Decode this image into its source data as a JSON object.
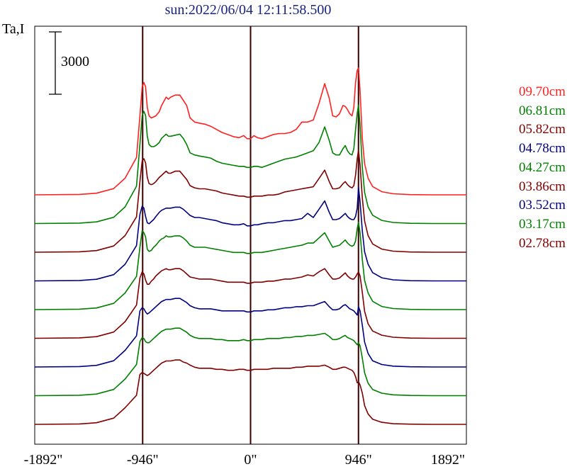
{
  "chart_data": {
    "type": "line",
    "title": "sun:2022/06/04 12:11:58.500",
    "ylabel": "Ta,I",
    "scale_bar": {
      "label": "3000",
      "value": 3000
    },
    "xlim": [
      -1892,
      1892
    ],
    "x_ticks": [
      {
        "value": -1892,
        "label": "-1892\""
      },
      {
        "value": -946,
        "label": "-946\""
      },
      {
        "value": 0,
        "label": "0\""
      },
      {
        "value": 946,
        "label": "946\""
      },
      {
        "value": 1892,
        "label": "1892\""
      }
    ],
    "vlines": [
      -946,
      0,
      946
    ],
    "grid": false,
    "legend_position": "right",
    "x": [
      -1892,
      -1500,
      -1350,
      -1200,
      -1100,
      -1000,
      -970,
      -950,
      -935,
      -920,
      -905,
      -890,
      -870,
      -850,
      -830,
      -800,
      -780,
      -760,
      -740,
      -720,
      -700,
      -660,
      -620,
      -590,
      -560,
      -530,
      -490,
      -450,
      -400,
      -350,
      -300,
      -250,
      -200,
      -150,
      -100,
      -60,
      -30,
      0,
      30,
      60,
      100,
      150,
      200,
      250,
      300,
      350,
      400,
      450,
      500,
      550,
      600,
      650,
      690,
      720,
      750,
      780,
      810,
      830,
      850,
      870,
      890,
      905,
      920,
      935,
      946,
      960,
      980,
      1000,
      1030,
      1070,
      1150,
      1250,
      1400,
      1600,
      1892
    ],
    "series": [
      {
        "name": "09.70cm",
        "color": "#ff2020",
        "values": [
          0,
          20,
          80,
          300,
          800,
          1800,
          3800,
          5200,
          5400,
          5200,
          4200,
          3800,
          3700,
          3750,
          3800,
          4000,
          4300,
          4500,
          4700,
          4600,
          4700,
          4800,
          4800,
          4550,
          4300,
          3700,
          3500,
          3450,
          3400,
          3300,
          3150,
          3000,
          2900,
          2800,
          2750,
          2850,
          2700,
          2700,
          2850,
          2750,
          2700,
          2800,
          2900,
          2950,
          2950,
          3000,
          3150,
          3500,
          3500,
          3600,
          4400,
          5350,
          4650,
          3800,
          3750,
          3900,
          4300,
          4250,
          4100,
          3900,
          3800,
          4200,
          5400,
          6000,
          6100,
          5000,
          2700,
          1500,
          800,
          400,
          150,
          50,
          10,
          0,
          0
        ]
      },
      {
        "name": "06.81cm",
        "color": "#008000",
        "values": [
          0,
          20,
          80,
          300,
          800,
          1800,
          3800,
          5200,
          5400,
          5200,
          4200,
          3800,
          3700,
          3700,
          3750,
          3900,
          4100,
          4200,
          4300,
          4200,
          4200,
          4250,
          4300,
          4100,
          3800,
          3400,
          3300,
          3250,
          3200,
          3150,
          3000,
          2900,
          2850,
          2800,
          2750,
          2750,
          2700,
          2700,
          2750,
          2750,
          2700,
          2800,
          2900,
          3000,
          3100,
          3150,
          3200,
          3300,
          3400,
          3500,
          3900,
          4650,
          4000,
          3400,
          3300,
          3300,
          3600,
          3750,
          3500,
          3350,
          3300,
          3600,
          4500,
          5300,
          5700,
          4700,
          2700,
          1500,
          800,
          400,
          150,
          50,
          10,
          0,
          0
        ]
      },
      {
        "name": "05.82cm",
        "color": "#800000",
        "values": [
          0,
          20,
          80,
          300,
          800,
          1700,
          3400,
          4400,
          4500,
          4300,
          3600,
          3300,
          3250,
          3300,
          3400,
          3600,
          3700,
          3800,
          3900,
          3800,
          3800,
          3900,
          3900,
          3700,
          3500,
          3200,
          3100,
          3050,
          3050,
          3000,
          2950,
          2850,
          2800,
          2750,
          2700,
          2700,
          2650,
          2650,
          2700,
          2700,
          2700,
          2750,
          2750,
          2800,
          2900,
          2950,
          3000,
          3050,
          3100,
          3150,
          3550,
          3950,
          3400,
          3050,
          3050,
          3100,
          3300,
          3400,
          3250,
          3150,
          3100,
          3200,
          3700,
          4500,
          4900,
          4200,
          2600,
          1500,
          800,
          400,
          150,
          50,
          10,
          0,
          0
        ]
      },
      {
        "name": "04.78cm",
        "color": "#000080",
        "values": [
          0,
          20,
          80,
          300,
          800,
          1700,
          3200,
          3600,
          3500,
          3100,
          2800,
          2750,
          2850,
          2950,
          3100,
          3300,
          3400,
          3450,
          3500,
          3500,
          3500,
          3550,
          3550,
          3450,
          3300,
          3150,
          3050,
          3050,
          3000,
          2950,
          2900,
          2800,
          2750,
          2700,
          2700,
          2750,
          2650,
          2650,
          2700,
          2700,
          2750,
          2800,
          2800,
          2850,
          2900,
          2900,
          2950,
          3000,
          3250,
          3050,
          3450,
          3850,
          3300,
          2950,
          2950,
          3000,
          3150,
          3250,
          3100,
          3000,
          2950,
          2950,
          3100,
          3500,
          4500,
          3800,
          2400,
          1400,
          800,
          400,
          150,
          50,
          10,
          0,
          0
        ]
      },
      {
        "name": "04.27cm",
        "color": "#008000",
        "values": [
          0,
          20,
          80,
          300,
          800,
          1600,
          3000,
          3800,
          3700,
          3500,
          2900,
          2800,
          2850,
          3000,
          3100,
          3300,
          3400,
          3450,
          3550,
          3500,
          3500,
          3550,
          3550,
          3450,
          3300,
          3100,
          3000,
          3000,
          3000,
          2950,
          2900,
          2850,
          2800,
          2750,
          2750,
          2750,
          2700,
          2700,
          2750,
          2750,
          2750,
          2800,
          2850,
          2900,
          2950,
          3000,
          3050,
          3100,
          3200,
          3200,
          3450,
          3700,
          3300,
          3000,
          3050,
          3100,
          3250,
          3350,
          3200,
          3100,
          3050,
          3100,
          3300,
          3900,
          4200,
          3700,
          2400,
          1400,
          800,
          400,
          150,
          50,
          10,
          0,
          0
        ]
      },
      {
        "name": "03.86cm",
        "color": "#800000",
        "values": [
          0,
          20,
          80,
          300,
          800,
          1600,
          2900,
          3200,
          3100,
          2800,
          2600,
          2600,
          2750,
          2850,
          3000,
          3150,
          3250,
          3300,
          3350,
          3300,
          3300,
          3350,
          3350,
          3250,
          3100,
          2950,
          2900,
          2850,
          2850,
          2850,
          2800,
          2750,
          2700,
          2700,
          2700,
          2700,
          2650,
          2650,
          2700,
          2700,
          2700,
          2750,
          2750,
          2800,
          2850,
          2850,
          2900,
          2950,
          3050,
          3000,
          3200,
          3350,
          3050,
          2850,
          2850,
          2900,
          3050,
          3150,
          3000,
          2900,
          2850,
          2850,
          2950,
          3100,
          3200,
          3000,
          2200,
          1300,
          700,
          350,
          150,
          50,
          10,
          0,
          0
        ]
      },
      {
        "name": "03.52cm",
        "color": "#000080",
        "values": [
          0,
          20,
          80,
          300,
          800,
          1500,
          2700,
          2850,
          2800,
          2650,
          2550,
          2600,
          2700,
          2800,
          2900,
          3050,
          3150,
          3200,
          3250,
          3250,
          3250,
          3300,
          3300,
          3200,
          3100,
          2950,
          2850,
          2800,
          2800,
          2800,
          2750,
          2700,
          2700,
          2700,
          2700,
          2700,
          2650,
          2650,
          2700,
          2700,
          2700,
          2750,
          2750,
          2800,
          2850,
          2850,
          2900,
          2900,
          2950,
          2950,
          3050,
          3150,
          2900,
          2750,
          2750,
          2800,
          2950,
          3000,
          2900,
          2800,
          2750,
          2700,
          2600,
          2500,
          2900,
          2700,
          2000,
          1200,
          650,
          300,
          120,
          40,
          10,
          0,
          0
        ]
      },
      {
        "name": "03.17cm",
        "color": "#008000",
        "values": [
          0,
          20,
          80,
          300,
          800,
          1500,
          2600,
          2800,
          2750,
          2600,
          2550,
          2550,
          2650,
          2750,
          2850,
          3000,
          3100,
          3150,
          3200,
          3200,
          3200,
          3250,
          3250,
          3150,
          3050,
          2900,
          2800,
          2750,
          2750,
          2750,
          2700,
          2700,
          2650,
          2650,
          2650,
          2700,
          2650,
          2650,
          2700,
          2700,
          2700,
          2750,
          2750,
          2750,
          2800,
          2800,
          2850,
          2850,
          2900,
          2900,
          2950,
          3000,
          2850,
          2700,
          2700,
          2750,
          2850,
          2900,
          2800,
          2750,
          2700,
          2650,
          2550,
          2450,
          2550,
          2400,
          1800,
          1100,
          600,
          300,
          120,
          40,
          10,
          0,
          0
        ]
      },
      {
        "name": "02.78cm",
        "color": "#800000",
        "values": [
          0,
          20,
          80,
          300,
          800,
          1400,
          2400,
          2500,
          2450,
          2400,
          2350,
          2400,
          2500,
          2600,
          2700,
          2850,
          2950,
          3000,
          3050,
          3050,
          3050,
          3100,
          3100,
          3000,
          2950,
          2850,
          2750,
          2700,
          2700,
          2700,
          2650,
          2650,
          2600,
          2600,
          2650,
          2650,
          2600,
          2600,
          2650,
          2650,
          2650,
          2650,
          2700,
          2700,
          2700,
          2700,
          2750,
          2750,
          2800,
          2800,
          2800,
          2850,
          2750,
          2650,
          2650,
          2700,
          2750,
          2750,
          2700,
          2650,
          2600,
          2500,
          2300,
          2000,
          2050,
          1900,
          1500,
          900,
          500,
          250,
          100,
          30,
          10,
          0,
          0
        ]
      }
    ]
  }
}
